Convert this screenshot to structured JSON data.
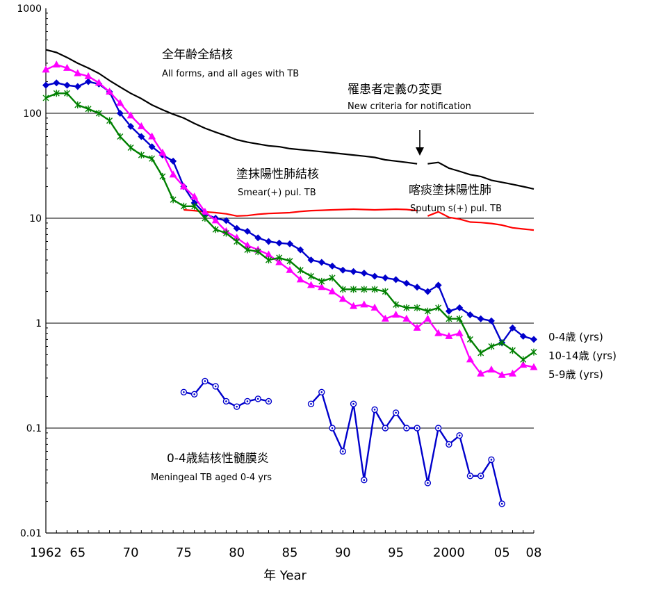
{
  "chart_data": {
    "type": "line",
    "yscale": "log",
    "ylim": [
      0.01,
      1000
    ],
    "xlim": [
      1962,
      2008
    ],
    "grid": true,
    "xlabel": "年 Year",
    "ylabel": "",
    "y_ticks": [
      "1000",
      "100",
      "10",
      "1",
      "0.1",
      "0.01"
    ],
    "x_ticks": [
      {
        "x": 1962,
        "label": "1962"
      },
      {
        "x": 1965,
        "label": "65"
      },
      {
        "x": 1970,
        "label": "70"
      },
      {
        "x": 1975,
        "label": "75"
      },
      {
        "x": 1980,
        "label": "80"
      },
      {
        "x": 1985,
        "label": "85"
      },
      {
        "x": 1990,
        "label": "90"
      },
      {
        "x": 1995,
        "label": "95"
      },
      {
        "x": 2000,
        "label": "2000"
      },
      {
        "x": 2005,
        "label": "05"
      },
      {
        "x": 2008,
        "label": "08"
      }
    ],
    "annotations": {
      "all_forms_jp": "全年齢全結核",
      "all_forms_en": "All forms, and all ages with TB",
      "criteria_jp": "罹患者定義の変更",
      "criteria_en": "New criteria for notification",
      "smear_jp": "塗抹陽性肺結核",
      "smear_en": "Smear(+) pul. TB",
      "sputum_jp": "喀痰塗抹陽性肺",
      "sputum_en": "Sputum s(+) pul. TB",
      "meningeal_jp": "0-4歳結核性髄膜炎",
      "meningeal_en": "Meningeal TB aged 0-4 yrs"
    },
    "legend": {
      "age04": "0-4歳 (yrs)",
      "age1014": "10-14歳 (yrs)",
      "age59": "5-9歳 (yrs)"
    },
    "series": [
      {
        "key": "all",
        "color": "#000000",
        "marker": "none",
        "segments": [
          {
            "x": [
              1962,
              1963,
              1964,
              1965,
              1966,
              1967,
              1968,
              1969,
              1970,
              1971,
              1972,
              1973,
              1974,
              1975,
              1976,
              1977,
              1978,
              1979,
              1980,
              1981,
              1982,
              1983,
              1984,
              1985,
              1986,
              1987,
              1988,
              1989,
              1990,
              1991,
              1992,
              1993,
              1994,
              1995,
              1996,
              1997
            ],
            "y": [
              403,
              380,
              340,
              300,
              270,
              240,
              205,
              178,
              155,
              138,
              120,
              108,
              98,
              90,
              80,
              72,
              66,
              61,
              56,
              53,
              51,
              49,
              48,
              46,
              45,
              44,
              43,
              42,
              41,
              40,
              39,
              38,
              36,
              35,
              34,
              33
            ]
          },
          {
            "x": [
              1998,
              1999,
              2000,
              2001,
              2002,
              2003,
              2004,
              2005,
              2006,
              2007,
              2008
            ],
            "y": [
              33,
              34,
              30,
              28,
              26,
              25,
              23,
              22,
              21,
              20,
              19
            ]
          }
        ]
      },
      {
        "key": "smear",
        "color": "#ff0000",
        "marker": "none",
        "segments": [
          {
            "x": [
              1975,
              1976,
              1977,
              1978,
              1979,
              1980,
              1981,
              1982,
              1983,
              1984,
              1985,
              1986,
              1987,
              1988,
              1989,
              1990,
              1991,
              1992,
              1993,
              1994,
              1995,
              1996,
              1997
            ],
            "y": [
              12,
              11.8,
              11.5,
              11.3,
              11,
              10.5,
              10.6,
              10.9,
              11.1,
              11.2,
              11.3,
              11.6,
              11.8,
              11.9,
              12,
              12.1,
              12.2,
              12.1,
              12,
              12.1,
              12.2,
              12.1,
              11.8
            ]
          },
          {
            "x": [
              1998,
              1999,
              2000,
              2001,
              2002,
              2003,
              2004,
              2005,
              2006,
              2007,
              2008
            ],
            "y": [
              10.5,
              11.5,
              10.2,
              9.8,
              9.2,
              9.1,
              8.9,
              8.6,
              8.1,
              7.9,
              7.7
            ]
          }
        ]
      },
      {
        "key": "age04",
        "color": "#0000cc",
        "marker": "diamond",
        "segments": [
          {
            "x": [
              1962,
              1963,
              1964,
              1965,
              1966,
              1967,
              1968,
              1969,
              1970,
              1971,
              1972,
              1973,
              1974,
              1975,
              1976,
              1977,
              1978,
              1979,
              1980,
              1981,
              1982,
              1983,
              1984,
              1985,
              1986,
              1987,
              1988,
              1989,
              1990,
              1991,
              1992,
              1993,
              1994,
              1995,
              1996,
              1997,
              1998,
              1999,
              2000,
              2001,
              2002,
              2003,
              2004,
              2005,
              2006,
              2007,
              2008
            ],
            "y": [
              185,
              195,
              185,
              180,
              200,
              190,
              160,
              100,
              75,
              60,
              48,
              40,
              35,
              20,
              14,
              11,
              10,
              9.5,
              8,
              7.5,
              6.5,
              6,
              5.8,
              5.7,
              5,
              4,
              3.8,
              3.5,
              3.2,
              3.1,
              3,
              2.8,
              2.7,
              2.6,
              2.4,
              2.2,
              2.0,
              2.3,
              1.3,
              1.4,
              1.2,
              1.1,
              1.05,
              0.65,
              0.9,
              0.75,
              0.7
            ]
          }
        ]
      },
      {
        "key": "age59",
        "color": "#ff00ff",
        "marker": "triangle",
        "segments": [
          {
            "x": [
              1962,
              1963,
              1964,
              1965,
              1966,
              1967,
              1968,
              1969,
              1970,
              1971,
              1972,
              1973,
              1974,
              1975,
              1976,
              1977,
              1978,
              1979,
              1980,
              1981,
              1982,
              1983,
              1984,
              1985,
              1986,
              1987,
              1988,
              1989,
              1990,
              1991,
              1992,
              1993,
              1994,
              1995,
              1996,
              1997,
              1998,
              1999,
              2000,
              2001,
              2002,
              2003,
              2004,
              2005,
              2006,
              2007,
              2008
            ],
            "y": [
              260,
              290,
              270,
              240,
              225,
              195,
              160,
              125,
              95,
              75,
              60,
              42,
              26,
              20,
              16,
              11.5,
              9.5,
              7.5,
              6.5,
              5.5,
              5,
              4.5,
              3.8,
              3.2,
              2.6,
              2.3,
              2.2,
              2.0,
              1.7,
              1.45,
              1.5,
              1.4,
              1.1,
              1.2,
              1.1,
              0.9,
              1.1,
              0.8,
              0.75,
              0.8,
              0.45,
              0.33,
              0.36,
              0.32,
              0.33,
              0.4,
              0.38
            ]
          }
        ]
      },
      {
        "key": "age1014",
        "color": "#008000",
        "marker": "star",
        "segments": [
          {
            "x": [
              1962,
              1963,
              1964,
              1965,
              1966,
              1967,
              1968,
              1969,
              1970,
              1971,
              1972,
              1973,
              1974,
              1975,
              1976,
              1977,
              1978,
              1979,
              1980,
              1981,
              1982,
              1983,
              1984,
              1985,
              1986,
              1987,
              1988,
              1989,
              1990,
              1991,
              1992,
              1993,
              1994,
              1995,
              1996,
              1997,
              1998,
              1999,
              2000,
              2001,
              2002,
              2003,
              2004,
              2005,
              2006,
              2007,
              2008
            ],
            "y": [
              140,
              155,
              155,
              120,
              110,
              100,
              85,
              60,
              47,
              40,
              37,
              25,
              15,
              13,
              13,
              10,
              7.8,
              7.2,
              6,
              5,
              4.8,
              4,
              4.2,
              3.9,
              3.2,
              2.8,
              2.5,
              2.7,
              2.1,
              2.1,
              2.1,
              2.1,
              2,
              1.5,
              1.4,
              1.4,
              1.3,
              1.4,
              1.1,
              1.1,
              0.7,
              0.52,
              0.6,
              0.65,
              0.55,
              0.45,
              0.53
            ]
          }
        ]
      },
      {
        "key": "meningeal",
        "color": "#0000cc",
        "marker": "circle",
        "segments": [
          {
            "x": [
              1975,
              1976,
              1977,
              1978,
              1979,
              1980,
              1981,
              1982,
              1983
            ],
            "y": [
              0.22,
              0.21,
              0.28,
              0.25,
              0.18,
              0.16,
              0.18,
              0.19,
              0.18
            ]
          },
          {
            "x": [
              1987,
              1988,
              1989,
              1990,
              1991,
              1992,
              1993,
              1994,
              1995,
              1996,
              1997,
              1998,
              1999,
              2000,
              2001,
              2002,
              2003,
              2004,
              2005
            ],
            "y": [
              0.17,
              0.22,
              0.1,
              0.06,
              0.17,
              0.032,
              0.15,
              0.1,
              0.14,
              0.1,
              0.1,
              0.03,
              0.1,
              0.07,
              0.085,
              0.035,
              0.035,
              0.05,
              0.019
            ]
          }
        ]
      }
    ]
  }
}
